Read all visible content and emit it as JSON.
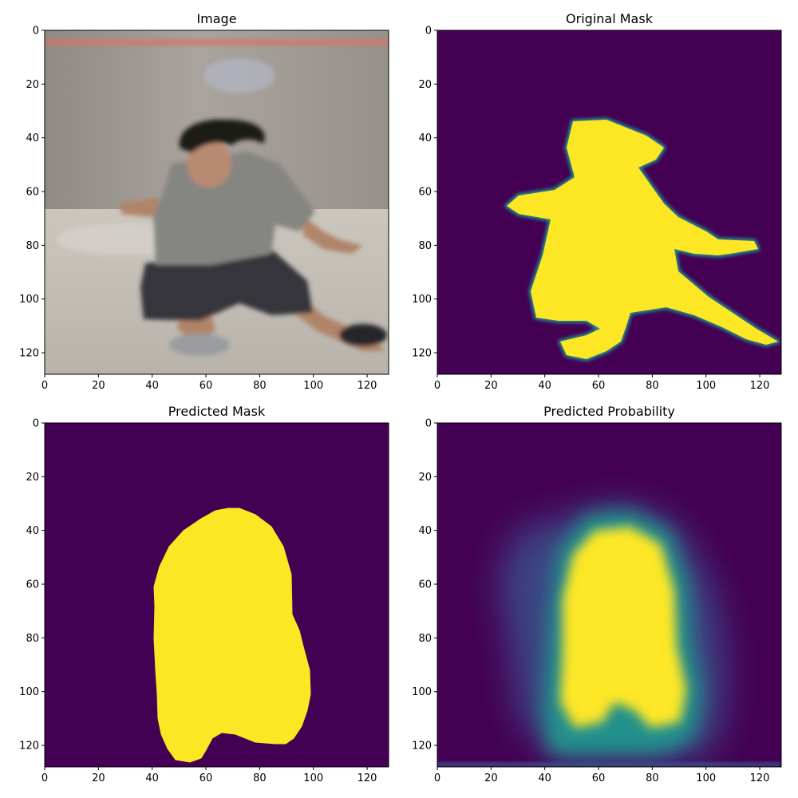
{
  "chart_data": [
    {
      "type": "heatmap",
      "title": "Image",
      "xlim": [
        0,
        128
      ],
      "ylim": [
        128,
        0
      ],
      "x_ticks": [
        "0",
        "20",
        "40",
        "60",
        "80",
        "100",
        "120"
      ],
      "y_ticks": [
        "0",
        "20",
        "40",
        "60",
        "80",
        "100",
        "120"
      ],
      "content": "photo",
      "colors": {
        "wall_top": "#9d9891",
        "wall_bottom": "#cfcbc3",
        "floor": "#bcb8b0",
        "stripe": "#d87366",
        "shirt": "#858582",
        "shorts": "#35363a",
        "hair": "#1e1a18",
        "skin": "#b98a72",
        "shoe": "#9a9ca0"
      }
    },
    {
      "type": "heatmap",
      "title": "Original Mask",
      "xlim": [
        0,
        128
      ],
      "ylim": [
        128,
        0
      ],
      "x_ticks": [
        "0",
        "20",
        "40",
        "60",
        "80",
        "100",
        "120"
      ],
      "y_ticks": [
        "0",
        "20",
        "40",
        "60",
        "80",
        "100",
        "120"
      ],
      "colormap": "viridis",
      "colors": {
        "background": "#440154",
        "foreground": "#fde725",
        "edge": "#21918c"
      }
    },
    {
      "type": "heatmap",
      "title": "Predicted Mask",
      "xlim": [
        0,
        128
      ],
      "ylim": [
        128,
        0
      ],
      "x_ticks": [
        "0",
        "20",
        "40",
        "60",
        "80",
        "100",
        "120"
      ],
      "y_ticks": [
        "0",
        "20",
        "40",
        "60",
        "80",
        "100",
        "120"
      ],
      "colormap": "viridis",
      "colors": {
        "background": "#440154",
        "foreground": "#fde725"
      }
    },
    {
      "type": "heatmap",
      "title": "Predicted Probability",
      "xlim": [
        0,
        128
      ],
      "ylim": [
        128,
        0
      ],
      "x_ticks": [
        "0",
        "20",
        "40",
        "60",
        "80",
        "100",
        "120"
      ],
      "y_ticks": [
        "0",
        "20",
        "40",
        "60",
        "80",
        "100",
        "120"
      ],
      "colormap": "viridis",
      "colors": {
        "background": "#440154",
        "mid_low": "#3b528b",
        "mid": "#21918c",
        "mid_high": "#5ec962",
        "high": "#fde725"
      }
    }
  ]
}
